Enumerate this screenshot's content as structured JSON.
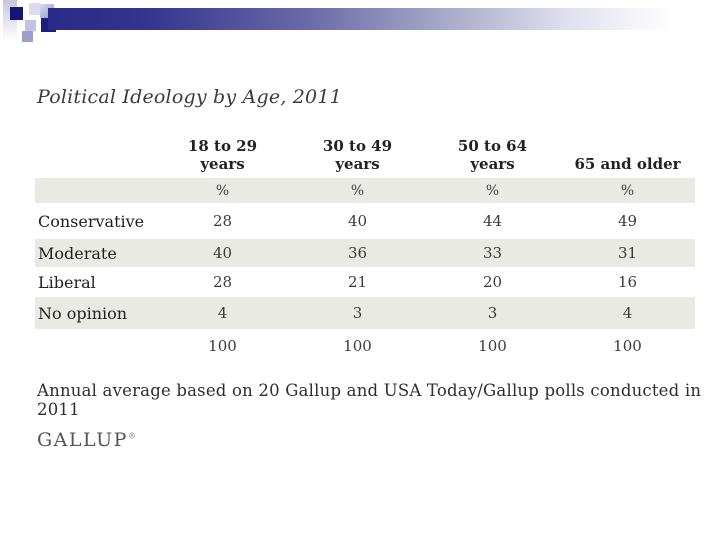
{
  "slide": {
    "title": "Political Ideology by Age, 2011",
    "footnote": "Annual average based on 20 Gallup and USA Today/Gallup polls conducted in 2011",
    "logo_text": "GALLUP",
    "logo_mark": "®"
  },
  "table": {
    "columns": [
      "18 to 29\nyears",
      "30 to 49\nyears",
      "50 to 64\nyears",
      "65 and older"
    ],
    "unit_row": [
      "%",
      "%",
      "%",
      "%"
    ],
    "rows": [
      {
        "label": "Conservative",
        "values": [
          "28",
          "40",
          "44",
          "49"
        ]
      },
      {
        "label": "Moderate",
        "values": [
          "40",
          "36",
          "33",
          "31"
        ]
      },
      {
        "label": "Liberal",
        "values": [
          "28",
          "21",
          "20",
          "16"
        ]
      },
      {
        "label": "No opinion",
        "values": [
          "4",
          "3",
          "3",
          "4"
        ]
      }
    ],
    "totals": [
      "100",
      "100",
      "100",
      "100"
    ]
  },
  "colors": {
    "row_band": "#eaeae4",
    "banner_navy": "#2a2a88",
    "pixel_navy": "#14147a",
    "pixel_lavender": "#c0c4e2"
  },
  "chart_data": {
    "type": "table",
    "title": "Political Ideology by Age, 2011",
    "categories": [
      "18 to 29 years",
      "30 to 49 years",
      "50 to 64 years",
      "65 and older"
    ],
    "series": [
      {
        "name": "Conservative",
        "values": [
          28,
          40,
          44,
          49
        ]
      },
      {
        "name": "Moderate",
        "values": [
          40,
          36,
          33,
          31
        ]
      },
      {
        "name": "Liberal",
        "values": [
          28,
          21,
          20,
          16
        ]
      },
      {
        "name": "No opinion",
        "values": [
          4,
          3,
          3,
          4
        ]
      }
    ],
    "totals": [
      100,
      100,
      100,
      100
    ],
    "unit": "%",
    "source_note": "Annual average based on 20 Gallup and USA Today/Gallup polls conducted in 2011"
  }
}
